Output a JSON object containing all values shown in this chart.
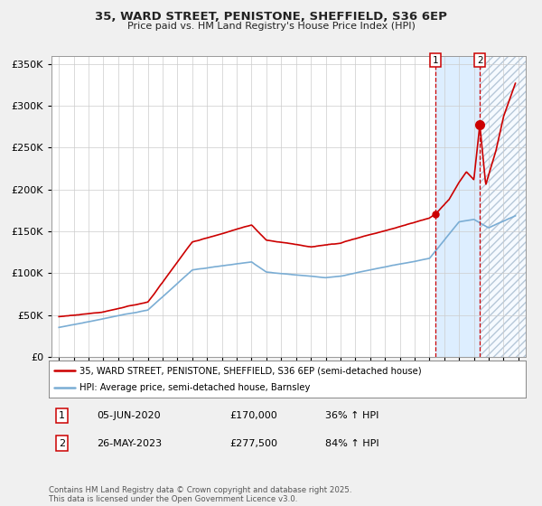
{
  "title1": "35, WARD STREET, PENISTONE, SHEFFIELD, S36 6EP",
  "title2": "Price paid vs. HM Land Registry's House Price Index (HPI)",
  "legend_line1": "35, WARD STREET, PENISTONE, SHEFFIELD, S36 6EP (semi-detached house)",
  "legend_line2": "HPI: Average price, semi-detached house, Barnsley",
  "annotation1_date": "05-JUN-2020",
  "annotation1_price": "£170,000",
  "annotation1_hpi": "36% ↑ HPI",
  "annotation2_date": "26-MAY-2023",
  "annotation2_price": "£277,500",
  "annotation2_hpi": "84% ↑ HPI",
  "footer": "Contains HM Land Registry data © Crown copyright and database right 2025.\nThis data is licensed under the Open Government Licence v3.0.",
  "red_color": "#cc0000",
  "blue_color": "#7aadd4",
  "plot_bg": "#ffffff",
  "fig_bg": "#f0f0f0",
  "grid_color": "#cccccc",
  "highlight_color": "#ddeeff",
  "ylim": [
    0,
    360000
  ],
  "yticks": [
    0,
    50000,
    100000,
    150000,
    200000,
    250000,
    300000,
    350000
  ],
  "ytick_labels": [
    "£0",
    "£50K",
    "£100K",
    "£150K",
    "£200K",
    "£250K",
    "£300K",
    "£350K"
  ],
  "purchase1_year": 2020.43,
  "purchase1_value": 170000,
  "purchase2_year": 2023.4,
  "purchase2_value": 277500,
  "xstart": 1994.5,
  "xend": 2026.5
}
